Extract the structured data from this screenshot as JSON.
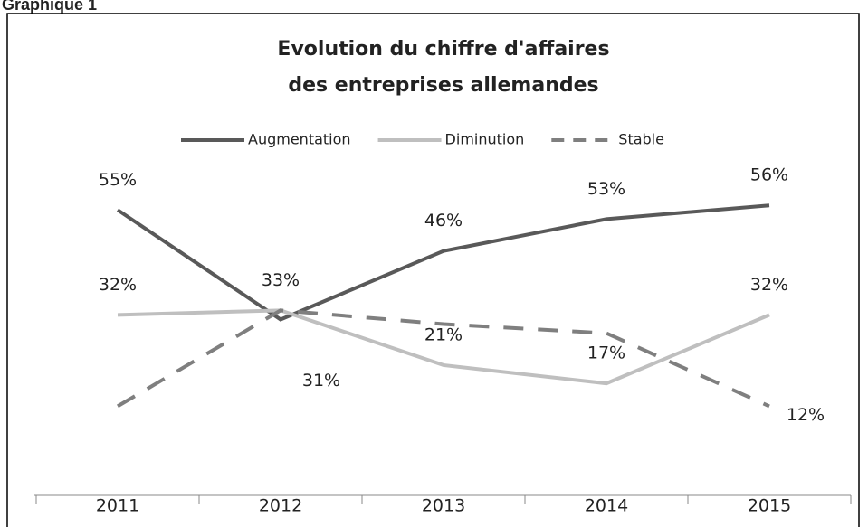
{
  "heading": "Graphique 1",
  "chart_data": {
    "type": "line",
    "title": [
      "Evolution du chiffre d'affaires",
      "des entreprises allemandes"
    ],
    "categories": [
      "2011",
      "2012",
      "2013",
      "2014",
      "2015"
    ],
    "legend": "top",
    "series": [
      {
        "name": "Augmentation",
        "color": "#595959",
        "dash": false,
        "values": [
          55,
          31,
          46,
          53,
          56
        ],
        "value_labels": [
          "55%",
          "31%",
          "46%",
          "53%",
          "56%"
        ]
      },
      {
        "name": "Diminution",
        "color": "#bfbfbf",
        "dash": false,
        "values": [
          32,
          33,
          21,
          17,
          32
        ],
        "value_labels": [
          "32%",
          null,
          "21%",
          "17%",
          "32%"
        ]
      },
      {
        "name": "Stable",
        "color": "#7f7f7f",
        "dash": true,
        "values": [
          12,
          33,
          30,
          28,
          12
        ],
        "value_labels": [
          null,
          "33%",
          null,
          null,
          "12%"
        ]
      }
    ]
  }
}
